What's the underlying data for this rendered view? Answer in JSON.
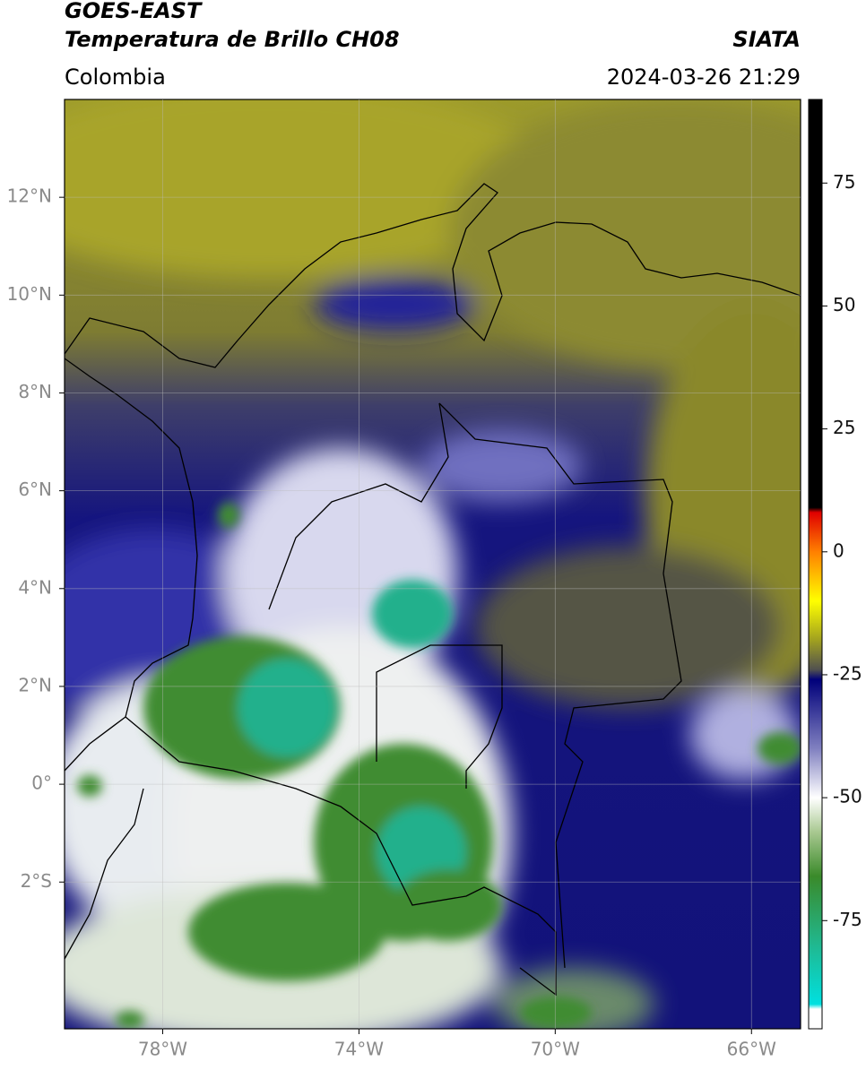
{
  "chart_data": {
    "type": "map",
    "title": "GOES-EAST",
    "subtitle": "Temperatura de Brillo CH08",
    "source": "SIATA",
    "region": "Colombia",
    "timestamp": "2024-03-26 21:29",
    "xlim": [
      -80,
      -65
    ],
    "ylim": [
      -5,
      14
    ],
    "xticks": [
      {
        "value": -78,
        "label": "78°W"
      },
      {
        "value": -74,
        "label": "74°W"
      },
      {
        "value": -70,
        "label": "70°W"
      },
      {
        "value": -66,
        "label": "66°W"
      }
    ],
    "yticks": [
      {
        "value": 12,
        "label": "12°N"
      },
      {
        "value": 10,
        "label": "10°N"
      },
      {
        "value": 8,
        "label": "8°N"
      },
      {
        "value": 6,
        "label": "6°N"
      },
      {
        "value": 4,
        "label": "4°N"
      },
      {
        "value": 2,
        "label": "2°N"
      },
      {
        "value": 0,
        "label": "0°"
      },
      {
        "value": -2,
        "label": "2°S"
      }
    ],
    "grid": true,
    "colorbar": {
      "lim": [
        -97,
        92
      ],
      "ticks": [
        75,
        50,
        25,
        0,
        -25,
        -50,
        -75
      ],
      "stops": [
        {
          "value": 92,
          "color": "#000000"
        },
        {
          "value": 9,
          "color": "#000000"
        },
        {
          "value": 8,
          "color": "#e00000"
        },
        {
          "value": 0,
          "color": "#ff8000"
        },
        {
          "value": -10,
          "color": "#ffff00"
        },
        {
          "value": -18,
          "color": "#a0a020"
        },
        {
          "value": -24,
          "color": "#505050"
        },
        {
          "value": -26,
          "color": "#00007a"
        },
        {
          "value": -40,
          "color": "#8080c0"
        },
        {
          "value": -50,
          "color": "#ffffff"
        },
        {
          "value": -57,
          "color": "#a8c890"
        },
        {
          "value": -66,
          "color": "#3a8a2a"
        },
        {
          "value": -80,
          "color": "#20b890"
        },
        {
          "value": -92,
          "color": "#00e0e0"
        },
        {
          "value": -93,
          "color": "#ffffff"
        },
        {
          "value": -97,
          "color": "#ffffff"
        }
      ]
    }
  }
}
